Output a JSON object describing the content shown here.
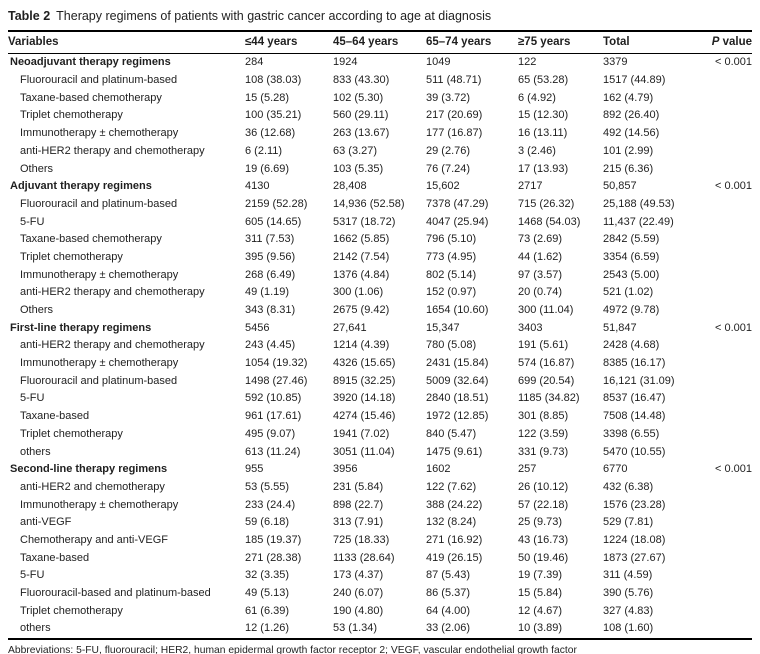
{
  "table": {
    "label": "Table 2",
    "caption": "Therapy regimens of patients with gastric cancer according to age at diagnosis",
    "columns": [
      "Variables",
      "≤44 years",
      "45–64 years",
      "65–74 years",
      "≥75 years",
      "Total"
    ],
    "p_header": {
      "italic": "P",
      "rest": " value"
    },
    "sections": [
      {
        "title": "Neoadjuvant therapy regimens",
        "totals": [
          "284",
          "1924",
          "1049",
          "122",
          "3379"
        ],
        "p": "< 0.001",
        "rows": [
          {
            "label": "Fluorouracil and platinum-based",
            "values": [
              "108 (38.03)",
              "833 (43.30)",
              "511 (48.71)",
              "65 (53.28)",
              "1517 (44.89)"
            ]
          },
          {
            "label": "Taxane-based chemotherapy",
            "values": [
              "15 (5.28)",
              "102 (5.30)",
              "39 (3.72)",
              "6 (4.92)",
              "162 (4.79)"
            ]
          },
          {
            "label": "Triplet chemotherapy",
            "values": [
              "100 (35.21)",
              "560 (29.11)",
              "217 (20.69)",
              "15 (12.30)",
              "892 (26.40)"
            ]
          },
          {
            "label": "Immunotherapy ± chemotherapy",
            "values": [
              "36 (12.68)",
              "263 (13.67)",
              "177 (16.87)",
              "16 (13.11)",
              "492 (14.56)"
            ]
          },
          {
            "label": "anti-HER2 therapy and chemotherapy",
            "values": [
              "6 (2.11)",
              "63 (3.27)",
              "29 (2.76)",
              "3 (2.46)",
              "101 (2.99)"
            ]
          },
          {
            "label": "Others",
            "values": [
              "19 (6.69)",
              "103 (5.35)",
              "76 (7.24)",
              "17 (13.93)",
              "215 (6.36)"
            ]
          }
        ]
      },
      {
        "title": "Adjuvant therapy regimens",
        "totals": [
          "4130",
          "28,408",
          "15,602",
          "2717",
          "50,857"
        ],
        "p": "< 0.001",
        "rows": [
          {
            "label": "Fluorouracil and platinum-based",
            "values": [
              "2159 (52.28)",
              "14,936 (52.58)",
              "7378 (47.29)",
              "715 (26.32)",
              "25,188 (49.53)"
            ]
          },
          {
            "label": "5-FU",
            "values": [
              "605 (14.65)",
              "5317 (18.72)",
              "4047 (25.94)",
              "1468 (54.03)",
              "11,437 (22.49)"
            ]
          },
          {
            "label": "Taxane-based chemotherapy",
            "values": [
              "311 (7.53)",
              "1662 (5.85)",
              "796 (5.10)",
              "73 (2.69)",
              "2842 (5.59)"
            ]
          },
          {
            "label": "Triplet chemotherapy",
            "values": [
              "395 (9.56)",
              "2142 (7.54)",
              "773 (4.95)",
              "44 (1.62)",
              "3354 (6.59)"
            ]
          },
          {
            "label": "Immunotherapy ± chemotherapy",
            "values": [
              "268 (6.49)",
              "1376 (4.84)",
              "802 (5.14)",
              "97 (3.57)",
              "2543 (5.00)"
            ]
          },
          {
            "label": "anti-HER2 therapy and chemotherapy",
            "values": [
              "49 (1.19)",
              "300 (1.06)",
              "152 (0.97)",
              "20 (0.74)",
              "521 (1.02)"
            ]
          },
          {
            "label": "Others",
            "values": [
              "343 (8.31)",
              "2675 (9.42)",
              "1654 (10.60)",
              "300 (11.04)",
              "4972 (9.78)"
            ]
          }
        ]
      },
      {
        "title": "First-line therapy regimens",
        "totals": [
          "5456",
          "27,641",
          "15,347",
          "3403",
          "51,847"
        ],
        "p": "< 0.001",
        "rows": [
          {
            "label": "anti-HER2 therapy and chemotherapy",
            "values": [
              "243 (4.45)",
              "1214 (4.39)",
              "780 (5.08)",
              "191 (5.61)",
              "2428 (4.68)"
            ]
          },
          {
            "label": "Immunotherapy ± chemotherapy",
            "values": [
              "1054 (19.32)",
              "4326 (15.65)",
              "2431 (15.84)",
              "574 (16.87)",
              "8385 (16.17)"
            ]
          },
          {
            "label": "Fluorouracil and platinum-based",
            "values": [
              "1498 (27.46)",
              "8915 (32.25)",
              "5009 (32.64)",
              "699 (20.54)",
              "16,121 (31.09)"
            ]
          },
          {
            "label": "5-FU",
            "values": [
              "592 (10.85)",
              "3920 (14.18)",
              "2840 (18.51)",
              "1185 (34.82)",
              "8537 (16.47)"
            ]
          },
          {
            "label": "Taxane-based",
            "values": [
              "961 (17.61)",
              "4274 (15.46)",
              "1972 (12.85)",
              "301 (8.85)",
              "7508 (14.48)"
            ]
          },
          {
            "label": "Triplet chemotherapy",
            "values": [
              "495 (9.07)",
              "1941 (7.02)",
              "840 (5.47)",
              "122 (3.59)",
              "3398 (6.55)"
            ]
          },
          {
            "label": "others",
            "values": [
              "613 (11.24)",
              "3051 (11.04)",
              "1475 (9.61)",
              "331 (9.73)",
              "5470 (10.55)"
            ]
          }
        ]
      },
      {
        "title": "Second-line therapy regimens",
        "totals": [
          "955",
          "3956",
          "1602",
          "257",
          "6770"
        ],
        "p": "< 0.001",
        "rows": [
          {
            "label": "anti-HER2 and chemotherapy",
            "values": [
              "53 (5.55)",
              "231 (5.84)",
              "122 (7.62)",
              "26 (10.12)",
              "432 (6.38)"
            ]
          },
          {
            "label": "Immunotherapy ± chemotherapy",
            "values": [
              "233 (24.4)",
              "898 (22.7)",
              "388 (24.22)",
              "57 (22.18)",
              "1576 (23.28)"
            ]
          },
          {
            "label": "anti-VEGF",
            "values": [
              "59 (6.18)",
              "313 (7.91)",
              "132 (8.24)",
              "25 (9.73)",
              "529 (7.81)"
            ]
          },
          {
            "label": "Chemotherapy and anti-VEGF",
            "values": [
              "185 (19.37)",
              "725 (18.33)",
              "271 (16.92)",
              "43 (16.73)",
              "1224 (18.08)"
            ]
          },
          {
            "label": "Taxane-based",
            "values": [
              "271 (28.38)",
              "1133 (28.64)",
              "419 (26.15)",
              "50 (19.46)",
              "1873 (27.67)"
            ]
          },
          {
            "label": "5-FU",
            "values": [
              "32 (3.35)",
              "173 (4.37)",
              "87 (5.43)",
              "19 (7.39)",
              "311 (4.59)"
            ]
          },
          {
            "label": "Fluorouracil-based and platinum-based",
            "values": [
              "49 (5.13)",
              "240 (6.07)",
              "86 (5.37)",
              "15 (5.84)",
              "390 (5.76)"
            ]
          },
          {
            "label": "Triplet chemotherapy",
            "values": [
              "61 (6.39)",
              "190 (4.80)",
              "64 (4.00)",
              "12 (4.67)",
              "327 (4.83)"
            ]
          },
          {
            "label": "others",
            "values": [
              "12 (1.26)",
              "53 (1.34)",
              "33 (2.06)",
              "10 (3.89)",
              "108 (1.60)"
            ]
          }
        ]
      }
    ]
  },
  "footer": {
    "abbreviations": "Abbreviations: 5-FU, fluorouracil; HER2, human epidermal growth factor receptor 2; VEGF, vascular endothelial growth factor"
  },
  "colors": {
    "text": "#1f1f1f",
    "rule": "#000000",
    "background": "#ffffff"
  }
}
